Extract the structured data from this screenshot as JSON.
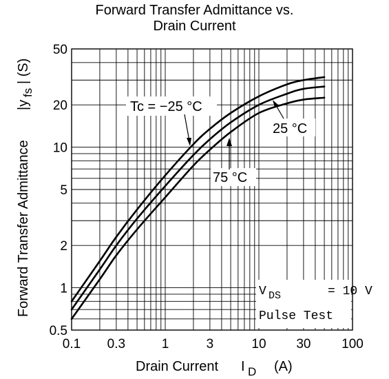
{
  "chart_data": {
    "type": "line",
    "title_line1": "Forward Transfer Admittance vs.",
    "title_line2": "Drain Current",
    "xlabel": "Drain Current",
    "xlabel_symbol": "I",
    "xlabel_sub": "D",
    "xlabel_unit": "(A)",
    "ylabel_main": "Forward Transfer Admittance",
    "ylabel_symbol": "|y",
    "ylabel_sub": "fs",
    "ylabel_unit": "| (S)",
    "x_scale": "log",
    "y_scale": "log",
    "xlim": [
      0.1,
      100
    ],
    "ylim": [
      0.5,
      50
    ],
    "x_ticks": [
      "0.1",
      "0.3",
      "1",
      "3",
      "10",
      "30",
      "100"
    ],
    "x_tick_values": [
      0.1,
      0.3,
      1,
      3,
      10,
      30,
      100
    ],
    "y_ticks": [
      "0.5",
      "1",
      "2",
      "5",
      "10",
      "20",
      "50"
    ],
    "y_tick_values": [
      0.5,
      1,
      2,
      5,
      10,
      20,
      50
    ],
    "grid": true,
    "series": [
      {
        "name": "Tc = −25 °C",
        "x": [
          0.1,
          0.2,
          0.3,
          0.5,
          1,
          2,
          3,
          5,
          10,
          20,
          30,
          50
        ],
        "y": [
          0.8,
          1.55,
          2.3,
          3.6,
          6.3,
          10.5,
          13.5,
          17.5,
          23,
          28,
          30,
          31.5
        ]
      },
      {
        "name": "25 °C",
        "x": [
          0.1,
          0.2,
          0.3,
          0.5,
          1,
          2,
          3,
          5,
          10,
          20,
          30,
          50
        ],
        "y": [
          0.7,
          1.35,
          2.0,
          3.1,
          5.3,
          8.8,
          11.4,
          15,
          20,
          24,
          26,
          27
        ]
      },
      {
        "name": "75 °C",
        "x": [
          0.1,
          0.2,
          0.3,
          0.5,
          1,
          2,
          3,
          5,
          10,
          20,
          30,
          50
        ],
        "y": [
          0.6,
          1.15,
          1.7,
          2.6,
          4.4,
          7.4,
          9.6,
          12.8,
          17.5,
          20.5,
          21.8,
          22.5
        ]
      }
    ],
    "annotations": {
      "tc_label": "Tc = −25 °C",
      "t25_label": "25 °C",
      "t75_label": "75 °C",
      "vds_prefix": "V",
      "vds_sub": "DS",
      "vds_value": "= 10 V",
      "pulse": "Pulse Test"
    }
  }
}
